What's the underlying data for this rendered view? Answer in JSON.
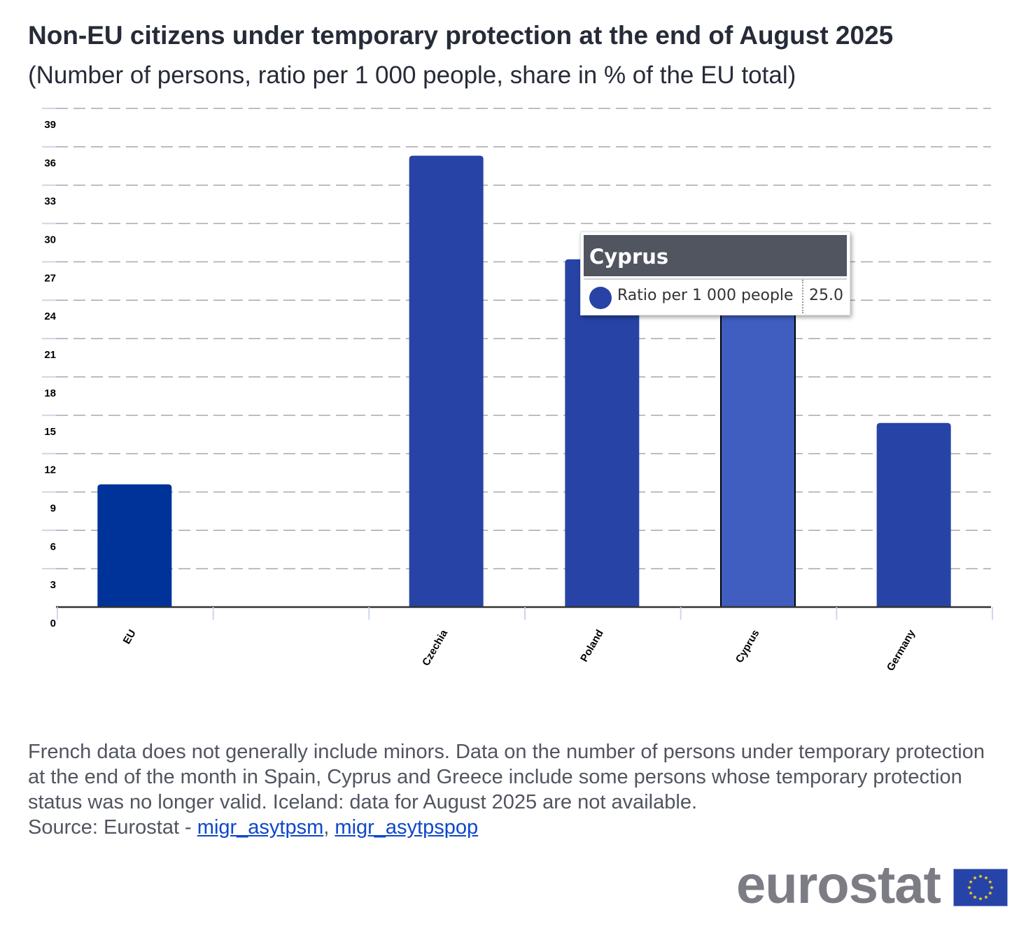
{
  "header": {
    "title": "Non-EU citizens under temporary protection at the end of August 2025",
    "subtitle": "(Number of persons, ratio per 1 000 people, share in % of the EU total)"
  },
  "chart_data": {
    "type": "bar",
    "title": "Non-EU citizens under temporary protection at the end of August 2025",
    "subtitle": "(Number of persons, ratio per 1 000 people, share in % of the EU total)",
    "xlabel": "",
    "ylabel": "",
    "categories": [
      "EU",
      "",
      "Czechia",
      "Poland",
      "Cyprus",
      "Germany"
    ],
    "series": [
      {
        "name": "Ratio per 1 000 people",
        "values": [
          9.6,
          null,
          35.3,
          27.2,
          25.0,
          14.4
        ]
      }
    ],
    "yticks": [
      0,
      3,
      6,
      9,
      12,
      15,
      18,
      21,
      24,
      27,
      30,
      33,
      36,
      39
    ],
    "ylim": [
      0,
      39
    ],
    "grid": true,
    "highlighted_category": "Cyprus",
    "colors": {
      "eu_bar": "#003399",
      "country_bar": "#2743a5",
      "highlight_bar": "#405dc0",
      "gridline": "#a8a8a8",
      "axis": "#333333"
    }
  },
  "tooltip": {
    "title": "Cyprus",
    "series_label": "Ratio per 1 000 people",
    "value": "25.0"
  },
  "footnote": {
    "text": "French data does not generally include minors. Data on the number of persons under temporary protection at the end of the month in Spain, Cyprus and Greece include some persons whose temporary protection status was no longer valid. Iceland: data for August 2025 are not available.",
    "source_prefix": "Source: Eurostat - ",
    "links": [
      "migr_asytpsm",
      "migr_asytpspop"
    ],
    "separator": ", "
  },
  "logo": {
    "text": "eurostat"
  }
}
